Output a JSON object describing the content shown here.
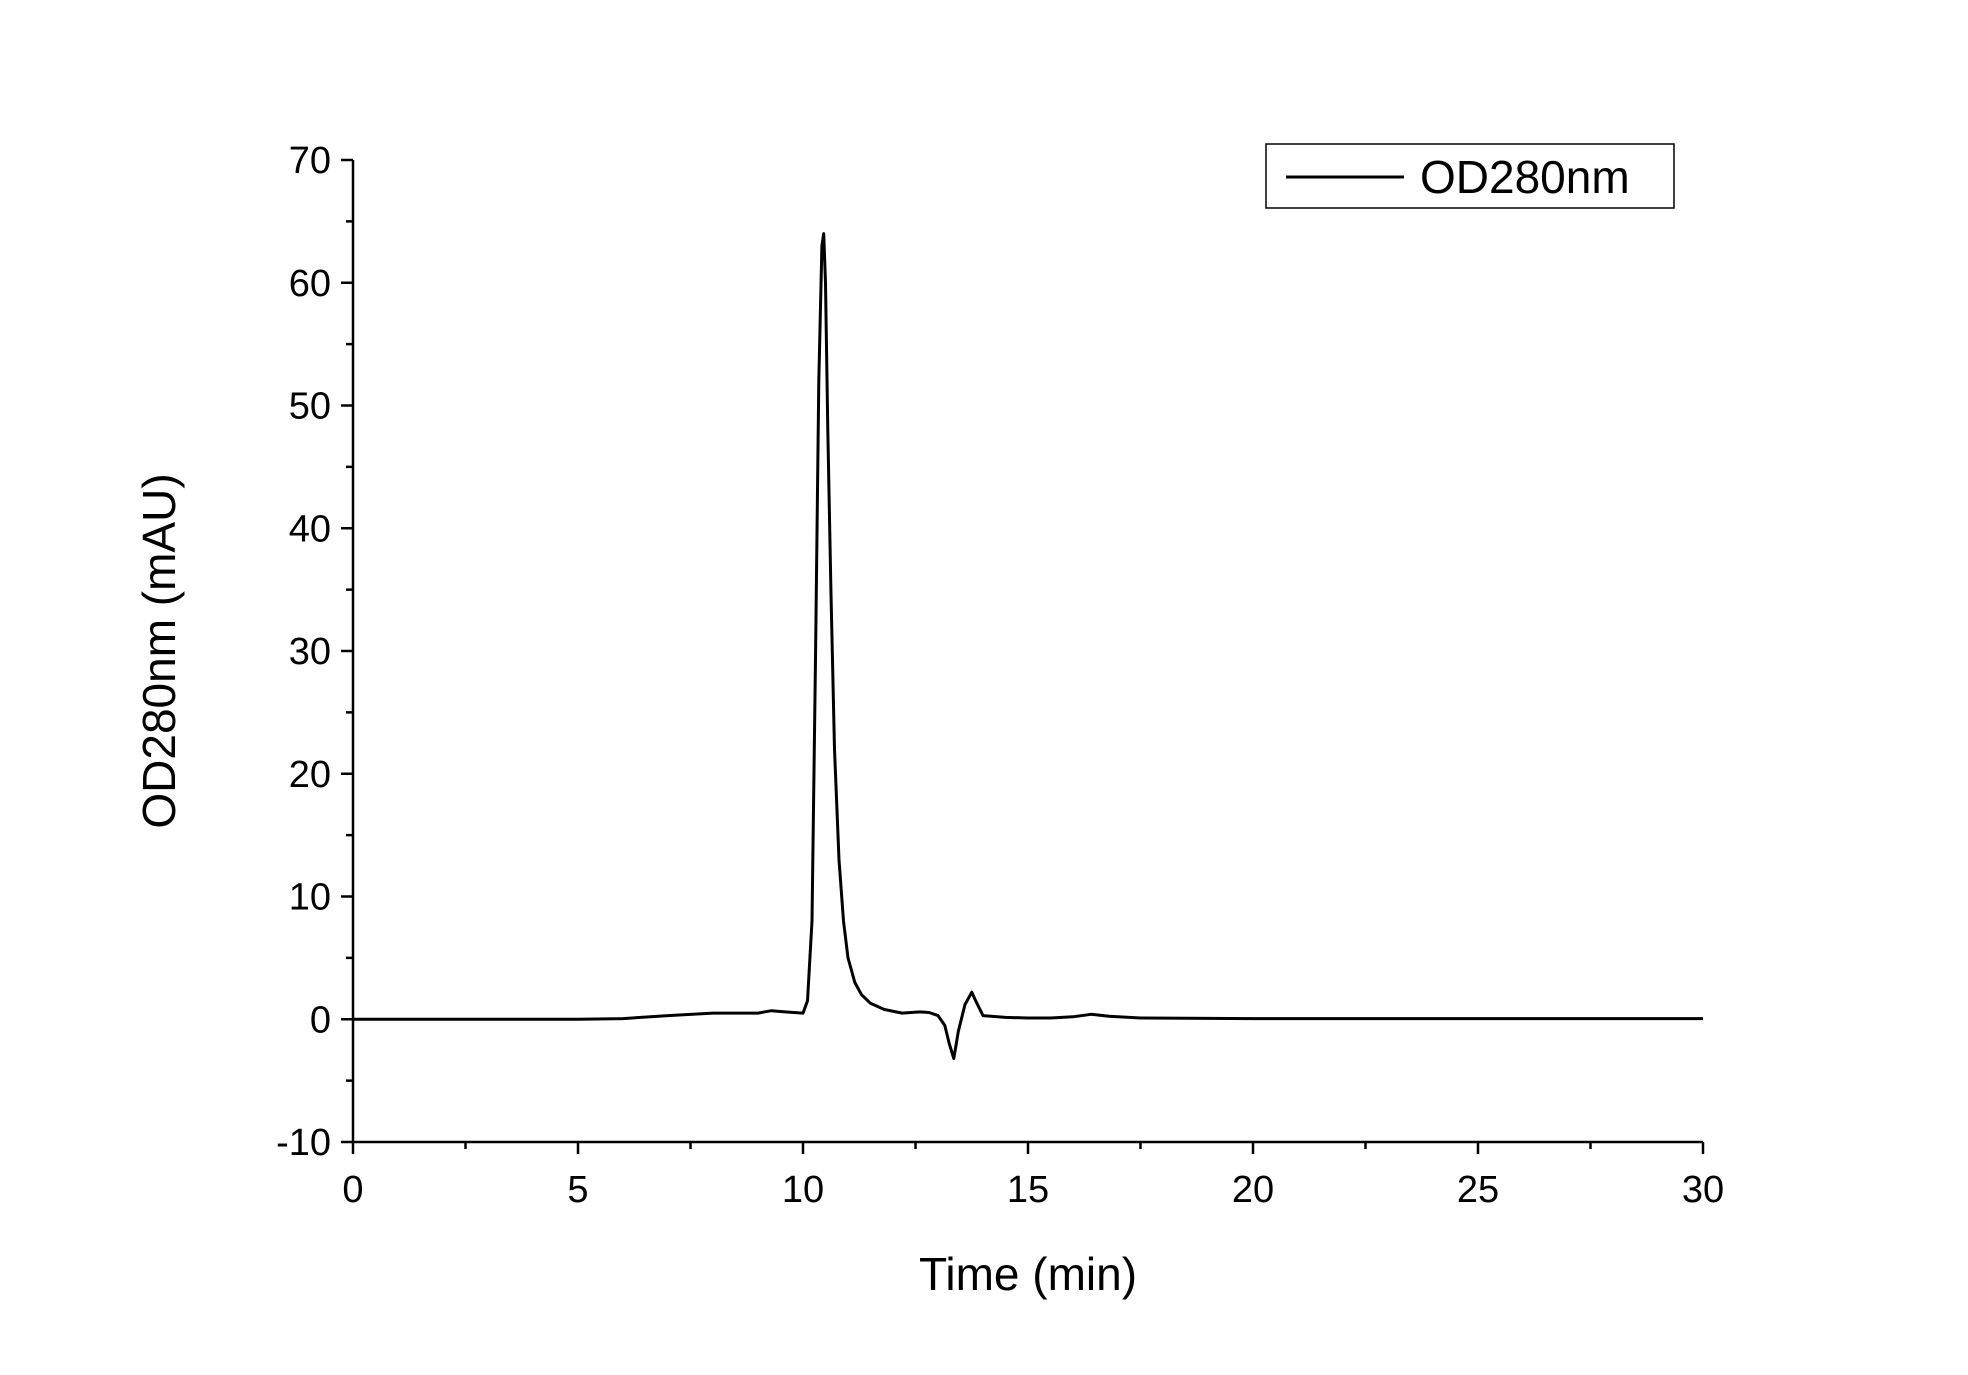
{
  "chart_data": {
    "type": "line",
    "title": "",
    "xlabel": "Time (min)",
    "ylabel": "OD280nm (mAU)",
    "xlim": [
      0,
      30
    ],
    "ylim": [
      -10,
      70
    ],
    "xticks": [
      0,
      5,
      10,
      15,
      20,
      25,
      30
    ],
    "yticks": [
      -10,
      0,
      10,
      20,
      30,
      40,
      50,
      60,
      70
    ],
    "grid": false,
    "legend_position": "top-right",
    "line_color": "#000000",
    "series": [
      {
        "name": "OD280nm",
        "x": [
          0,
          5,
          6,
          7,
          8,
          9,
          9.3,
          9.6,
          10.0,
          10.1,
          10.2,
          10.28,
          10.35,
          10.42,
          10.46,
          10.5,
          10.55,
          10.62,
          10.7,
          10.8,
          10.9,
          11.0,
          11.15,
          11.3,
          11.5,
          11.8,
          12.2,
          12.6,
          12.8,
          13.0,
          13.15,
          13.25,
          13.35,
          13.45,
          13.6,
          13.75,
          13.85,
          14.0,
          14.5,
          15.0,
          15.5,
          16.0,
          16.4,
          16.8,
          17.5,
          20,
          25,
          30
        ],
        "y": [
          0,
          0,
          0.05,
          0.3,
          0.5,
          0.5,
          0.7,
          0.6,
          0.5,
          1.5,
          8,
          30,
          52,
          63,
          64,
          60,
          48,
          35,
          22,
          13,
          8,
          5,
          3,
          2,
          1.3,
          0.8,
          0.5,
          0.6,
          0.55,
          0.3,
          -0.5,
          -2,
          -3.2,
          -1,
          1.2,
          2.2,
          1.4,
          0.3,
          0.15,
          0.1,
          0.1,
          0.2,
          0.4,
          0.25,
          0.1,
          0.05,
          0.05,
          0.05
        ]
      }
    ]
  }
}
